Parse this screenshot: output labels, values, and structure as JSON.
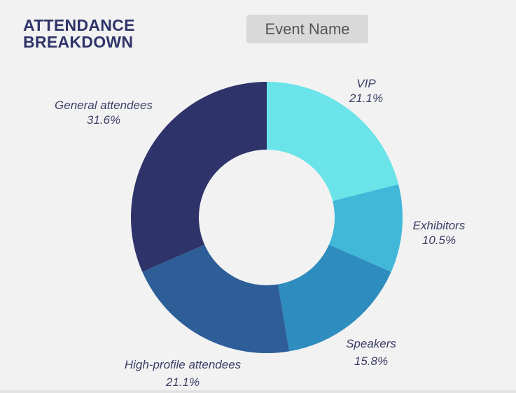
{
  "header": {
    "title_line1": "ATTENDANCE",
    "title_line2": "BREAKDOWN",
    "event_button_label": "Event Name"
  },
  "chart_data": {
    "type": "pie",
    "donut": true,
    "categories": [
      "VIP",
      "Exhibitors",
      "Speakers",
      "High-profile attendees",
      "General attendees"
    ],
    "values": [
      21.1,
      10.5,
      15.8,
      21.1,
      31.6
    ],
    "value_labels": [
      "21.1%",
      "10.5%",
      "15.8%",
      "21.1%",
      "31.6%"
    ],
    "colors": [
      "#6ae4e8",
      "#41b8d8",
      "#2e8cbe",
      "#2d5e98",
      "#2e336a"
    ],
    "start_angle_deg": 0,
    "direction": "clockwise",
    "legend": "none"
  }
}
